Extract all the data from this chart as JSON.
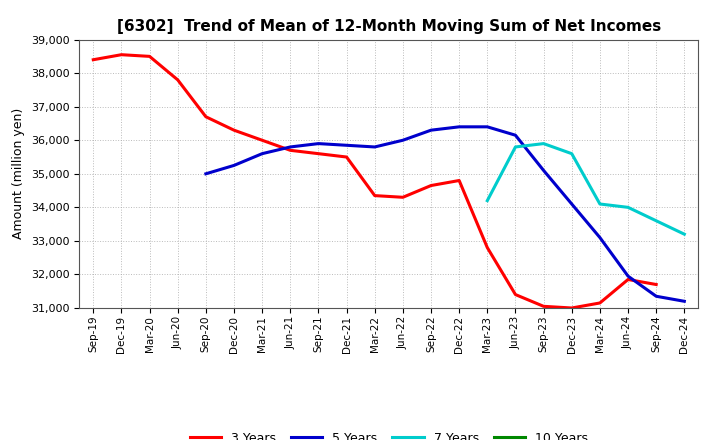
{
  "title": "[6302]  Trend of Mean of 12-Month Moving Sum of Net Incomes",
  "ylabel": "Amount (million yen)",
  "background_color": "#ffffff",
  "grid_color": "#aaaaaa",
  "ylim": [
    31000,
    39000
  ],
  "yticks": [
    31000,
    32000,
    33000,
    34000,
    35000,
    36000,
    37000,
    38000,
    39000
  ],
  "x_labels": [
    "Sep-19",
    "Dec-19",
    "Mar-20",
    "Jun-20",
    "Sep-20",
    "Dec-20",
    "Mar-21",
    "Jun-21",
    "Sep-21",
    "Dec-21",
    "Mar-22",
    "Jun-22",
    "Sep-22",
    "Dec-22",
    "Mar-23",
    "Jun-23",
    "Sep-23",
    "Dec-23",
    "Mar-24",
    "Jun-24",
    "Sep-24",
    "Dec-24"
  ],
  "series": {
    "3 Years": {
      "color": "#ff0000",
      "linewidth": 2.2,
      "data": [
        38400,
        38550,
        38500,
        37800,
        36700,
        36300,
        36000,
        35700,
        35600,
        35500,
        34350,
        34300,
        34650,
        34800,
        32800,
        31400,
        31050,
        31000,
        31150,
        31850,
        31700,
        null
      ]
    },
    "5 Years": {
      "color": "#0000cc",
      "linewidth": 2.2,
      "data": [
        null,
        null,
        null,
        null,
        35000,
        35250,
        35600,
        35800,
        35900,
        35850,
        35800,
        36000,
        36300,
        36400,
        36400,
        36150,
        35100,
        34100,
        33100,
        31950,
        31350,
        31200
      ]
    },
    "7 Years": {
      "color": "#00cccc",
      "linewidth": 2.2,
      "data": [
        null,
        null,
        null,
        null,
        null,
        null,
        null,
        null,
        null,
        null,
        null,
        null,
        null,
        null,
        34200,
        35800,
        35900,
        35600,
        34100,
        34000,
        33600,
        33200
      ]
    },
    "10 Years": {
      "color": "#008800",
      "linewidth": 2.2,
      "data": [
        null,
        null,
        null,
        null,
        null,
        null,
        null,
        null,
        null,
        null,
        null,
        null,
        null,
        null,
        null,
        null,
        null,
        null,
        null,
        null,
        null,
        null
      ]
    }
  }
}
